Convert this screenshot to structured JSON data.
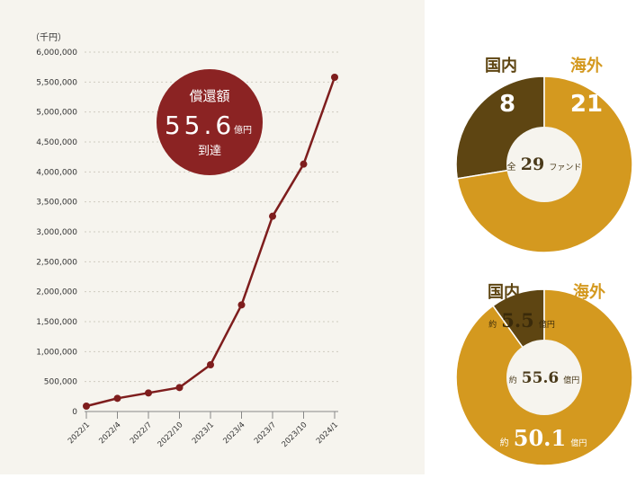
{
  "line_chart": {
    "unit_label": "（千円）",
    "badge": {
      "title": "償還額",
      "value": "55.6",
      "unit": "億円",
      "caption": "到達"
    }
  },
  "donut_funds": {
    "domestic_label": "国内",
    "overseas_label": "海外",
    "domestic_value": "8",
    "overseas_value": "21",
    "center_prefix": "全",
    "center_value": "29",
    "center_suffix": "ファンド"
  },
  "donut_amount": {
    "domestic_label": "国内",
    "overseas_label": "海外",
    "domestic_prefix": "約",
    "domestic_value": "5.5",
    "domestic_unit": "億円",
    "center_prefix": "約",
    "center_value": "55.6",
    "center_unit": "億円",
    "overseas_prefix": "約",
    "overseas_value": "50.1",
    "overseas_unit": "億円"
  },
  "colors": {
    "line": "#7e1d1d",
    "badge": "#8b2323",
    "domestic": "#5e4512",
    "overseas": "#d4991f",
    "center": "#f6f4ee",
    "text_dark": "#4a3a1a"
  },
  "chart_data": [
    {
      "type": "line",
      "title": "",
      "xlabel": "",
      "ylabel": "（千円）",
      "ylim": [
        0,
        6000000
      ],
      "yticks": [
        0,
        500000,
        1000000,
        1500000,
        2000000,
        2500000,
        3000000,
        3500000,
        4000000,
        4500000,
        5000000,
        5500000,
        6000000
      ],
      "ytick_labels": [
        "0",
        "500,000",
        "1,000,000",
        "1,500,000",
        "2,000,000",
        "2,500,000",
        "3,000,000",
        "3,500,000",
        "4,000,000",
        "4,500,000",
        "5,000,000",
        "5,500,000",
        "6,000,000"
      ],
      "categories": [
        "2022/1",
        "2022/4",
        "2022/7",
        "2022/10",
        "2023/1",
        "2023/4",
        "2023/7",
        "2023/10",
        "2024/1"
      ],
      "series": [
        {
          "values": [
            90000,
            220000,
            310000,
            400000,
            780000,
            1780000,
            3260000,
            4130000,
            5580000
          ]
        }
      ],
      "grid": true
    },
    {
      "type": "pie",
      "donut": true,
      "categories": [
        "国内",
        "海外"
      ],
      "values": [
        8,
        21
      ],
      "center_text": "全29ファンド"
    },
    {
      "type": "pie",
      "donut": true,
      "categories": [
        "国内",
        "海外"
      ],
      "values": [
        5.5,
        50.1
      ],
      "center_text": "約55.6億円"
    }
  ]
}
